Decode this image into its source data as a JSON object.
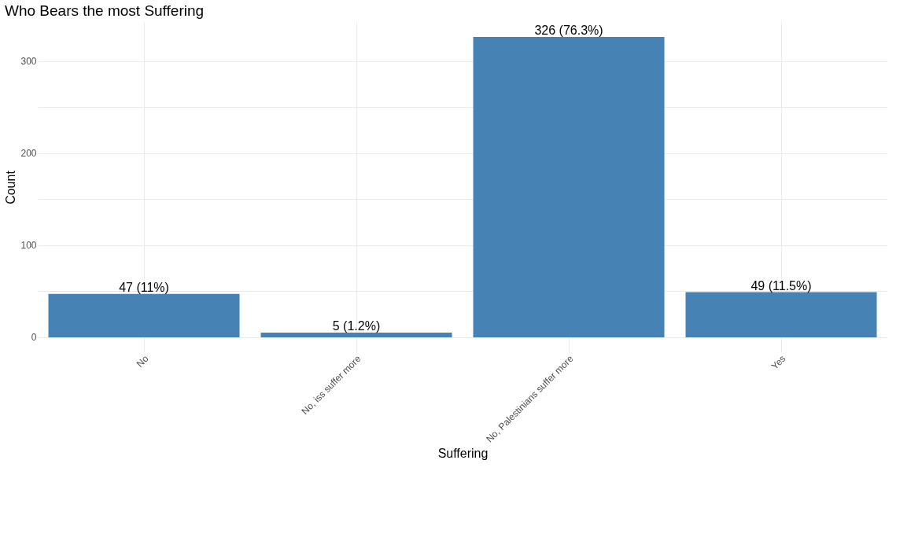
{
  "chart_data": {
    "type": "bar",
    "title": "Who Bears the most Suffering",
    "xlabel": "Suffering",
    "ylabel": "Count",
    "categories": [
      "No",
      "No, iss suffer more",
      "No, Palestinians suffer more",
      "Yes"
    ],
    "values": [
      47,
      5,
      326,
      49
    ],
    "value_labels": [
      "47 (11%)",
      "5 (1.2%)",
      "326 (76.3%)",
      "49 (11.5%)"
    ],
    "color": "#4682b4",
    "ylim": [
      -16.3,
      342.3
    ],
    "yticks": [
      0,
      {
        "value": 50,
        "label": null
      },
      100,
      {
        "value": 150,
        "label": null
      },
      200,
      {
        "value": 250,
        "label": null
      },
      300
    ],
    "grid": true
  }
}
